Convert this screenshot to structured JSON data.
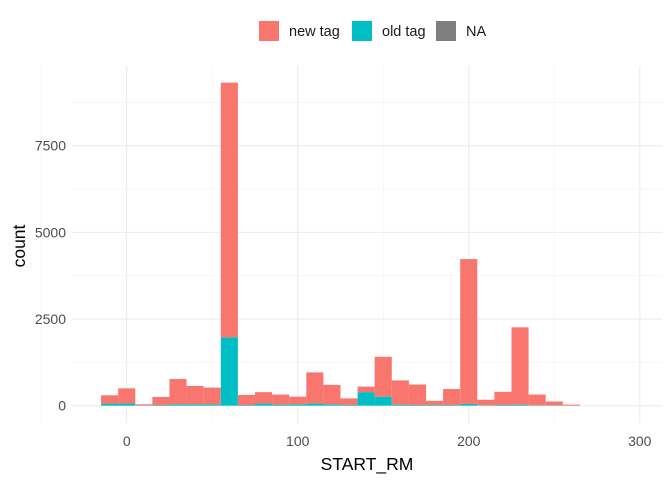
{
  "chart_data": {
    "type": "bar",
    "stacked": true,
    "xlabel": "START_RM",
    "ylabel": "count",
    "xlim": [
      -32,
      313
    ],
    "ylim": [
      -500,
      9800
    ],
    "x_ticks": [
      0,
      100,
      200,
      300
    ],
    "y_ticks": [
      0,
      2500,
      5000,
      7500
    ],
    "minor_x_ticks": [
      -50,
      50,
      150,
      250
    ],
    "minor_y_ticks": [
      1250,
      3750,
      6250,
      8750
    ],
    "grid": true,
    "legend_position": "top",
    "bin_width": 10,
    "bin_centers": [
      -10,
      0,
      10,
      20,
      30,
      40,
      50,
      60,
      70,
      80,
      90,
      100,
      110,
      120,
      130,
      140,
      150,
      160,
      170,
      180,
      190,
      200,
      210,
      220,
      230,
      240,
      250,
      260,
      270,
      280,
      290,
      300
    ],
    "series": [
      {
        "name": "new tag",
        "color": "#F8766D",
        "values": [
          240,
          440,
          30,
          230,
          730,
          530,
          480,
          7350,
          290,
          330,
          290,
          220,
          900,
          560,
          190,
          160,
          1150,
          700,
          590,
          120,
          460,
          4180,
          160,
          380,
          2230,
          310,
          110,
          30,
          0,
          0,
          0,
          0
        ]
      },
      {
        "name": "old tag",
        "color": "#00BFC4",
        "values": [
          60,
          60,
          10,
          20,
          40,
          40,
          40,
          1970,
          20,
          60,
          30,
          40,
          60,
          40,
          20,
          390,
          260,
          30,
          20,
          20,
          20,
          50,
          10,
          20,
          30,
          10,
          10,
          0,
          0,
          0,
          0,
          0
        ]
      },
      {
        "name": "NA",
        "color": "#7F7F7F",
        "values": [
          0,
          0,
          0,
          0,
          0,
          0,
          0,
          0,
          0,
          0,
          0,
          0,
          0,
          0,
          0,
          0,
          0,
          0,
          0,
          0,
          0,
          0,
          0,
          0,
          0,
          0,
          0,
          0,
          0,
          0,
          0,
          0
        ]
      }
    ]
  }
}
